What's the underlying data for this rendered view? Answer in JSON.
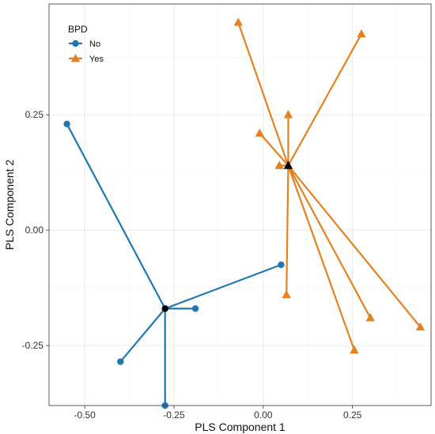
{
  "chart_data": {
    "type": "scatter",
    "xlabel": "PLS Component 1",
    "ylabel": "PLS Component 2",
    "xlim": [
      -0.6,
      0.47
    ],
    "ylim": [
      -0.38,
      0.49
    ],
    "x_ticks": [
      -0.5,
      -0.25,
      0.0,
      0.25
    ],
    "x_tick_labels": [
      "-0.50",
      "-0.25",
      "0.00",
      "0.25"
    ],
    "y_ticks": [
      -0.25,
      0.0,
      0.25
    ],
    "y_tick_labels": [
      "-0.25",
      "0.00",
      "0.25"
    ],
    "grid": true,
    "legend": {
      "title": "BPD",
      "position": "top-left"
    },
    "series": [
      {
        "name": "No",
        "marker": "circle",
        "color": "#1f77b4",
        "centroid": [
          -0.275,
          -0.17
        ],
        "points": [
          [
            -0.55,
            0.23
          ],
          [
            0.05,
            -0.075
          ],
          [
            -0.19,
            -0.17
          ],
          [
            -0.4,
            -0.285
          ],
          [
            -0.275,
            -0.38
          ]
        ]
      },
      {
        "name": "Yes",
        "marker": "triangle",
        "color": "#e6811f",
        "centroid": [
          0.07,
          0.14
        ],
        "points": [
          [
            -0.07,
            0.45
          ],
          [
            0.275,
            0.425
          ],
          [
            0.07,
            0.25
          ],
          [
            -0.01,
            0.21
          ],
          [
            0.045,
            0.14
          ],
          [
            0.065,
            -0.14
          ],
          [
            0.3,
            -0.19
          ],
          [
            0.44,
            -0.21
          ],
          [
            0.255,
            -0.26
          ]
        ]
      }
    ],
    "centroid_color": "#000000"
  }
}
